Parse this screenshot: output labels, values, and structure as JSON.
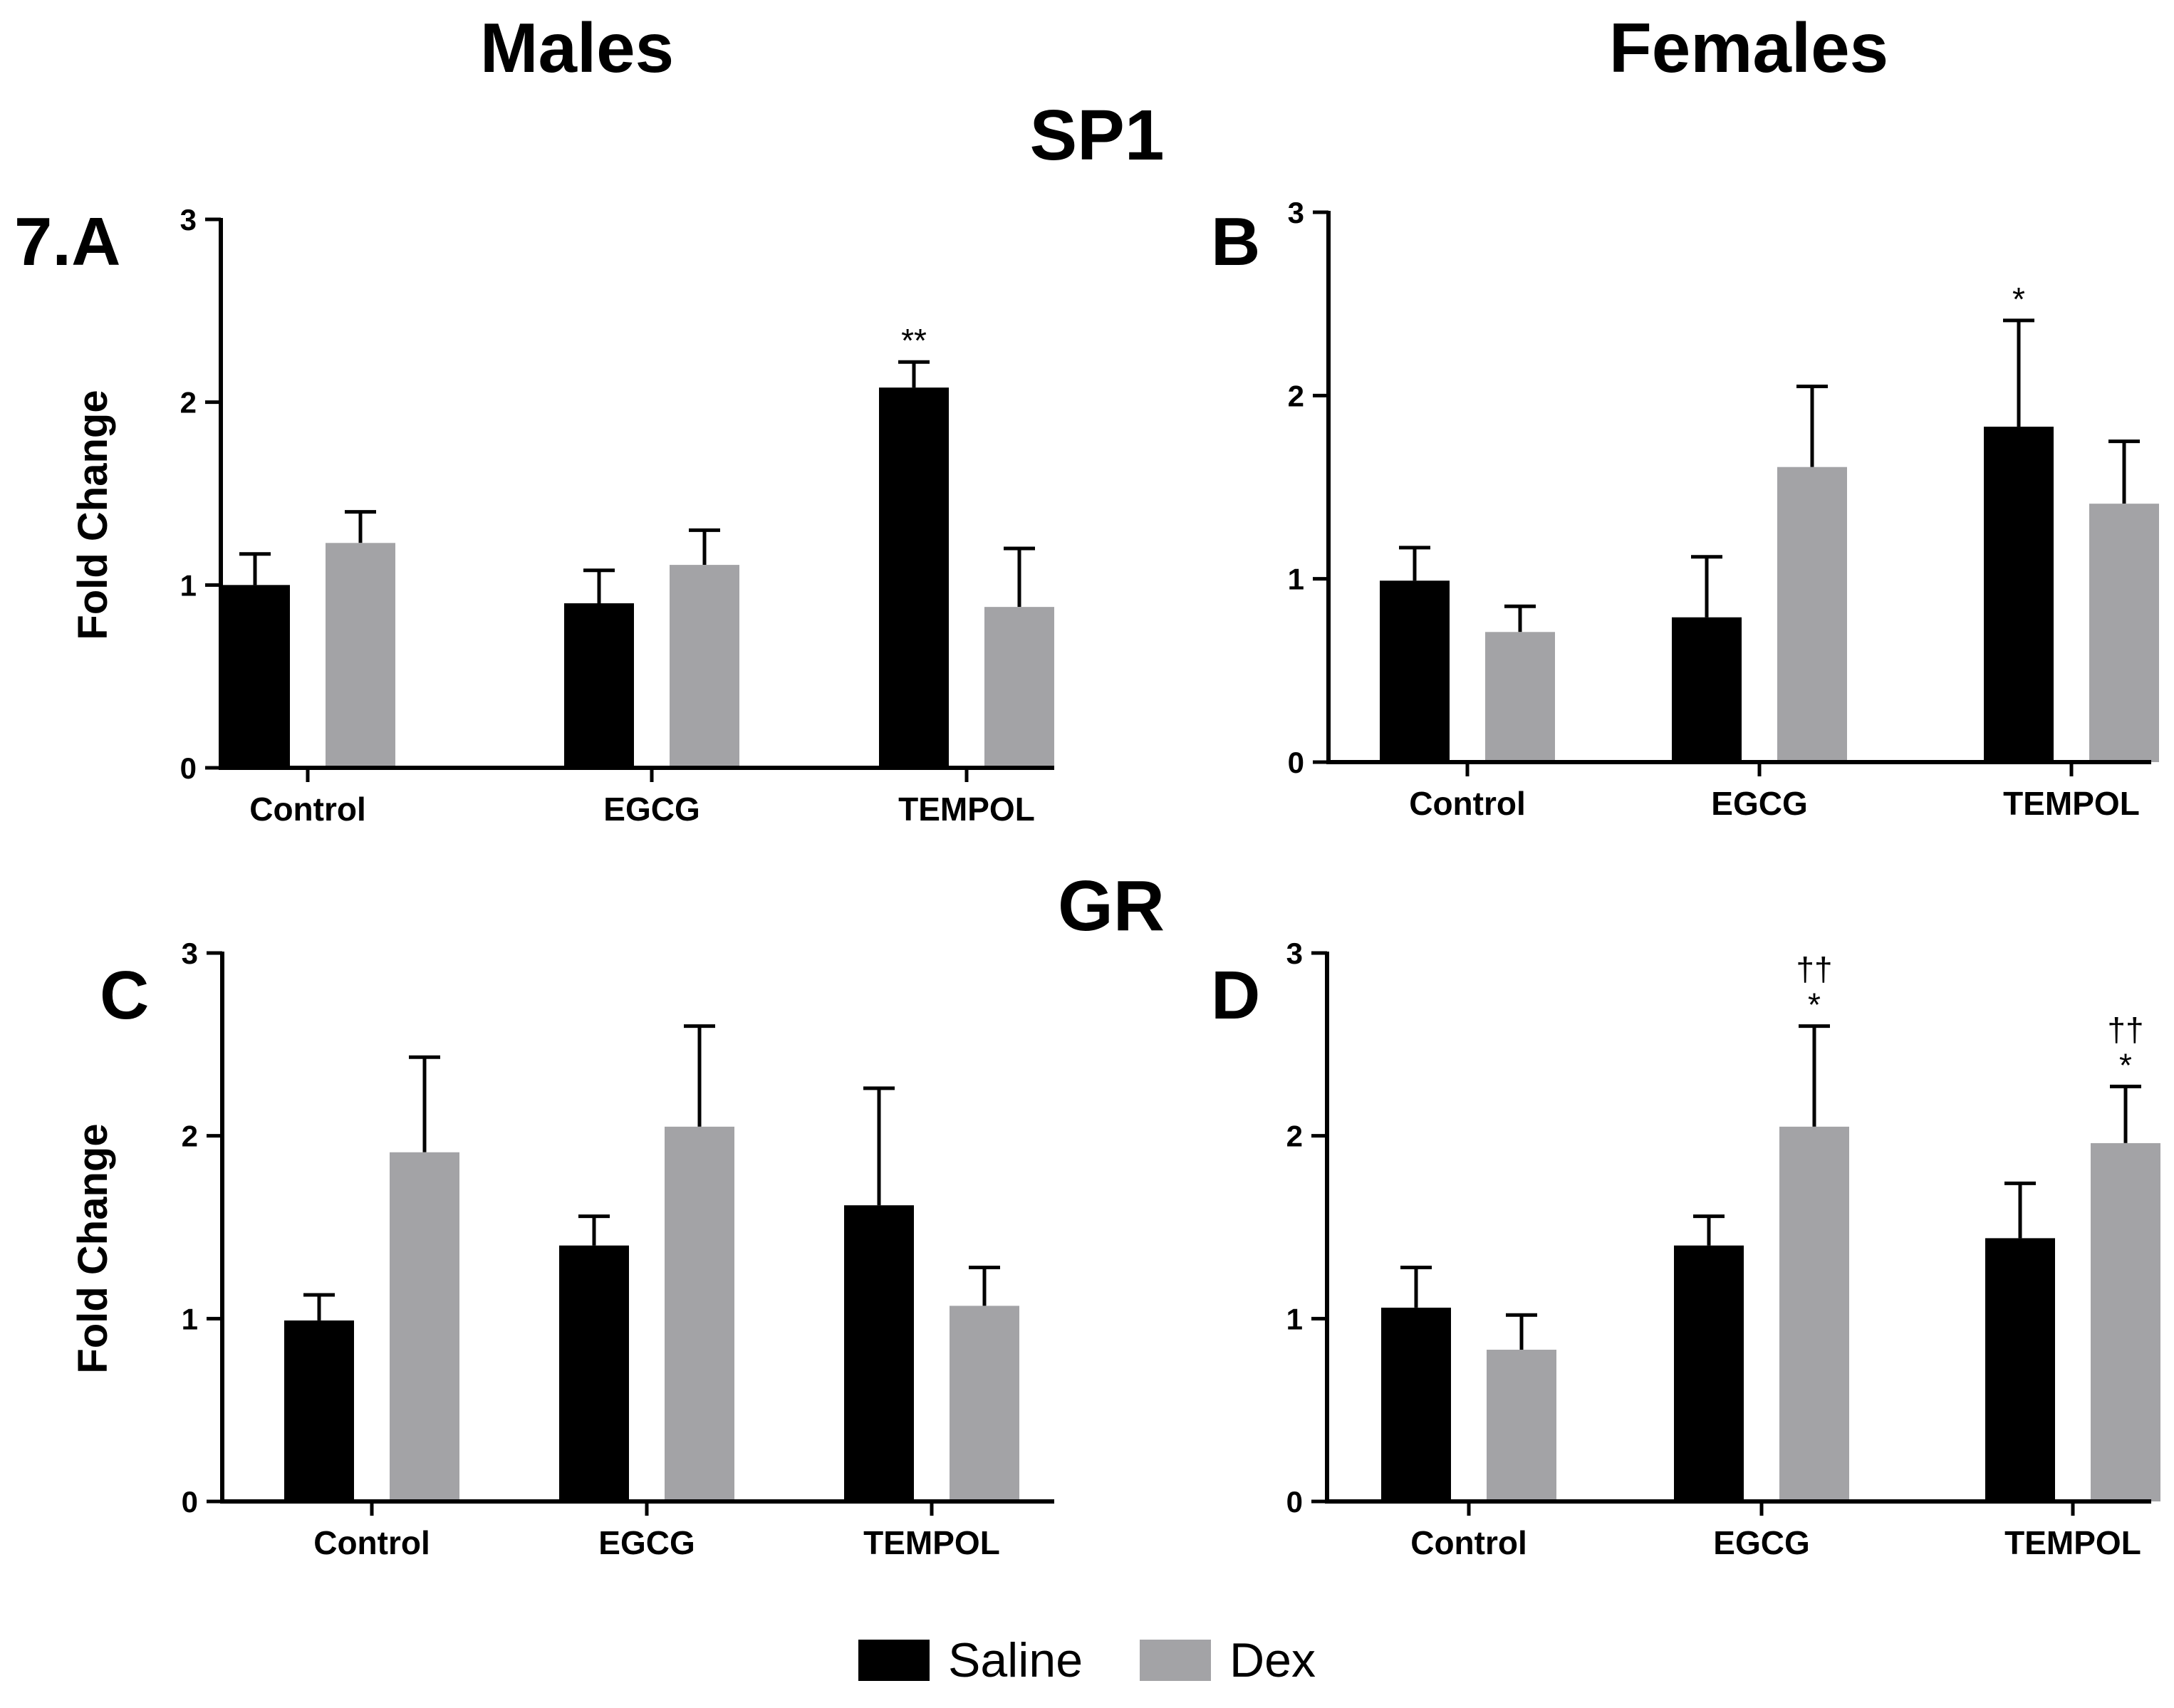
{
  "headers": {
    "males": "Males",
    "females": "Females",
    "gene_top": "SP1",
    "gene_bottom": "GR"
  },
  "colors": {
    "saline": "#000000",
    "dex": "#a3a3a6"
  },
  "legend": [
    {
      "label": "Saline",
      "color": "#000000"
    },
    {
      "label": "Dex",
      "color": "#a3a3a6"
    }
  ],
  "chart_data": [
    {
      "panel": "7.A",
      "type": "bar",
      "sex": "Males",
      "gene": "SP1",
      "ylabel": "Fold Change",
      "ylim": [
        0,
        3
      ],
      "yticks": [
        "0",
        "1",
        "2",
        "3"
      ],
      "categories": [
        "Control",
        "EGCG",
        "TEMPOL"
      ],
      "series": [
        {
          "name": "Saline",
          "values": [
            1.0,
            0.9,
            2.08
          ],
          "errors": [
            0.17,
            0.18,
            0.14
          ]
        },
        {
          "name": "Dex",
          "values": [
            1.23,
            1.11,
            0.88
          ],
          "errors": [
            0.17,
            0.19,
            0.32
          ]
        }
      ],
      "annotations": [
        {
          "category": "TEMPOL",
          "series": "Saline",
          "lines": [
            "**"
          ]
        }
      ]
    },
    {
      "panel": "B",
      "type": "bar",
      "sex": "Females",
      "gene": "SP1",
      "ylabel": "",
      "ylim": [
        0,
        3
      ],
      "yticks": [
        "0",
        "1",
        "2",
        "3"
      ],
      "categories": [
        "Control",
        "EGCG",
        "TEMPOL"
      ],
      "series": [
        {
          "name": "Saline",
          "values": [
            0.99,
            0.79,
            1.83
          ],
          "errors": [
            0.18,
            0.33,
            0.58
          ]
        },
        {
          "name": "Dex",
          "values": [
            0.71,
            1.61,
            1.41
          ],
          "errors": [
            0.14,
            0.44,
            0.34
          ]
        }
      ],
      "annotations": [
        {
          "category": "TEMPOL",
          "series": "Saline",
          "lines": [
            "*"
          ]
        }
      ]
    },
    {
      "panel": "C",
      "type": "bar",
      "sex": "Males",
      "gene": "GR",
      "ylabel": "Fold Change",
      "ylim": [
        0,
        3
      ],
      "yticks": [
        "0",
        "1",
        "2",
        "3"
      ],
      "categories": [
        "Control",
        "EGCG",
        "TEMPOL"
      ],
      "series": [
        {
          "name": "Saline",
          "values": [
            0.99,
            1.4,
            1.62
          ],
          "errors": [
            0.14,
            0.16,
            0.64
          ]
        },
        {
          "name": "Dex",
          "values": [
            1.91,
            2.05,
            1.07
          ],
          "errors": [
            0.52,
            0.55,
            0.21
          ]
        }
      ],
      "annotations": []
    },
    {
      "panel": "D",
      "type": "bar",
      "sex": "Females",
      "gene": "GR",
      "ylabel": "",
      "ylim": [
        0,
        3
      ],
      "yticks": [
        "0",
        "1",
        "2",
        "3"
      ],
      "categories": [
        "Control",
        "EGCG",
        "TEMPOL"
      ],
      "series": [
        {
          "name": "Saline",
          "values": [
            1.06,
            1.4,
            1.44
          ],
          "errors": [
            0.22,
            0.16,
            0.3
          ]
        },
        {
          "name": "Dex",
          "values": [
            0.83,
            2.05,
            1.96
          ],
          "errors": [
            0.19,
            0.55,
            0.31
          ]
        }
      ],
      "annotations": [
        {
          "category": "EGCG",
          "series": "Dex",
          "lines": [
            "††",
            "*"
          ]
        },
        {
          "category": "TEMPOL",
          "series": "Dex",
          "lines": [
            "††",
            "*"
          ]
        }
      ]
    }
  ]
}
